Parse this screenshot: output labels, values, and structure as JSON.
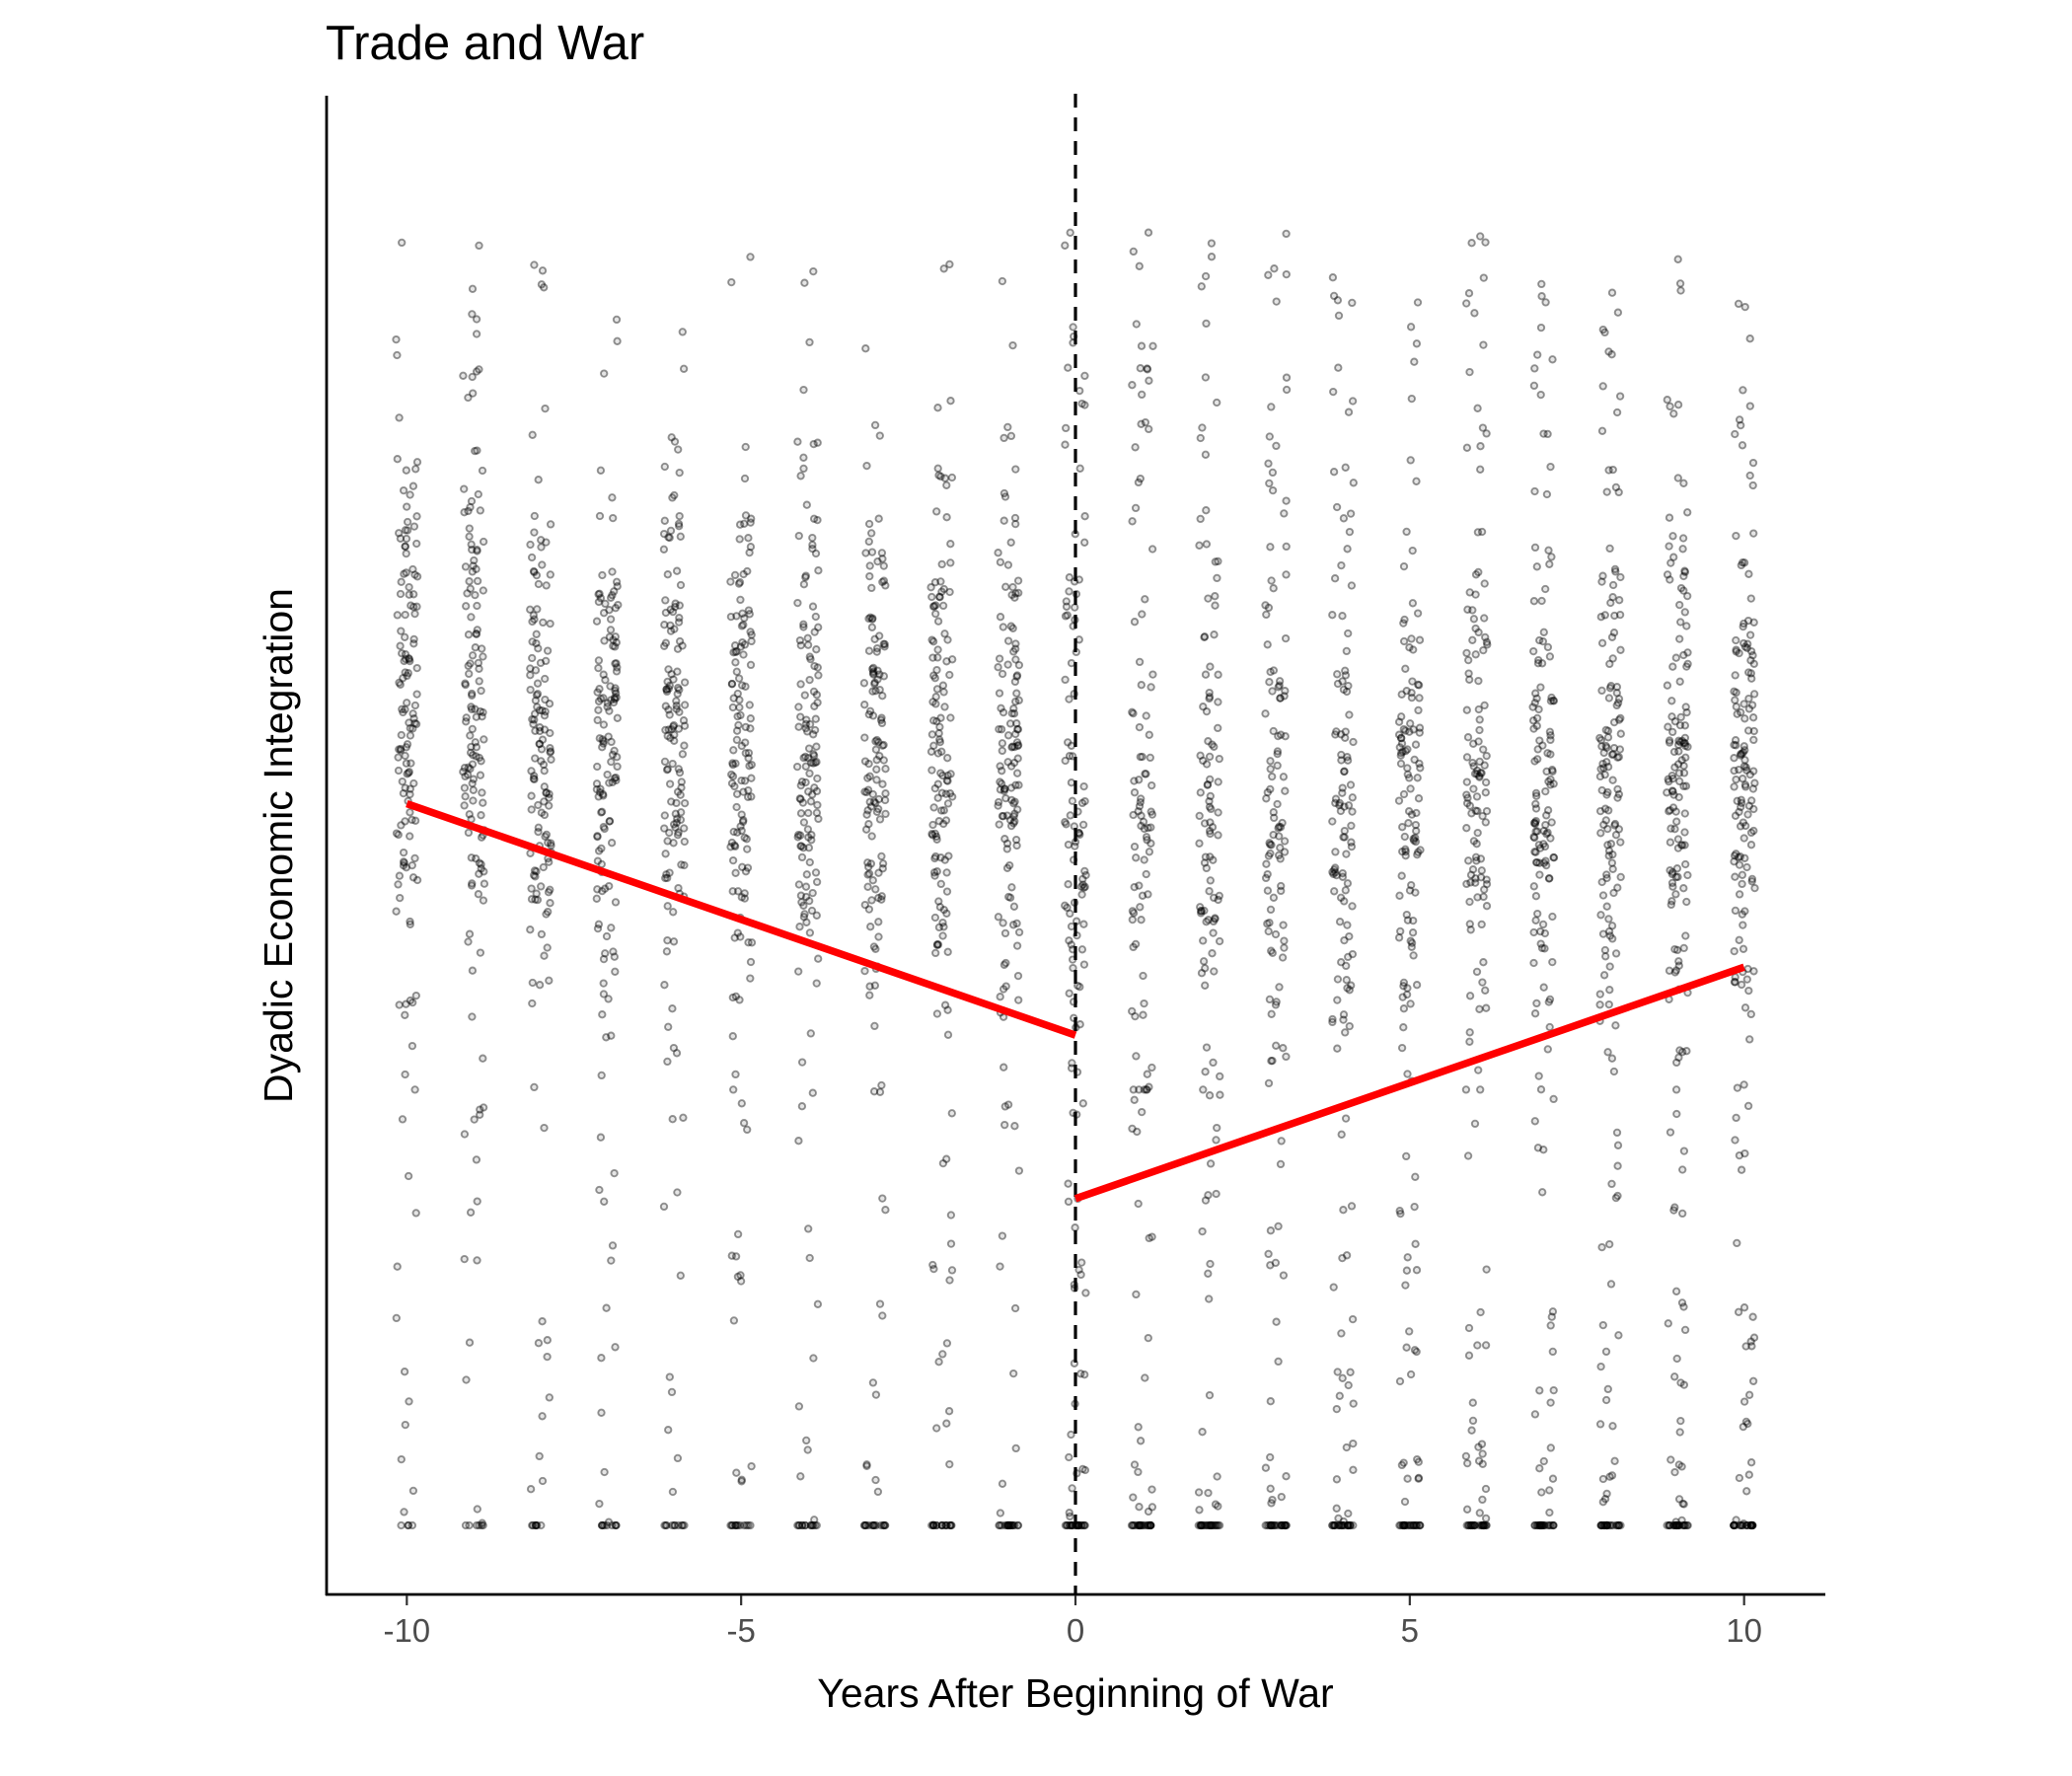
{
  "chart_data": {
    "type": "scatter",
    "title": "Trade and War",
    "xlabel": "Years After Beginning of War",
    "ylabel": "Dyadic Economic Integration",
    "xlim": [
      -11.2,
      11.2
    ],
    "ylim": [
      -0.05,
      1.05
    ],
    "x_ticks": [
      -10,
      -5,
      0,
      5,
      10
    ],
    "x_tick_labels": [
      "-10",
      "-5",
      "0",
      "5",
      "10"
    ],
    "y_ticks": [],
    "grid": false,
    "legend": "none",
    "vline": {
      "x": 0,
      "style": "dashed",
      "color": "#000000"
    },
    "points_color": "#000000",
    "points_note": "jittered observations per year, -10 to 10",
    "years": [
      -10,
      -9,
      -8,
      -7,
      -6,
      -5,
      -4,
      -3,
      -2,
      -1,
      0,
      1,
      2,
      3,
      4,
      5,
      6,
      7,
      8,
      9,
      10
    ],
    "regression_lines": [
      {
        "color": "#ff0000",
        "x": [
          -10,
          0
        ],
        "y": [
          0.53,
          0.36
        ]
      },
      {
        "color": "#ff0000",
        "x": [
          0,
          10
        ],
        "y": [
          0.24,
          0.41
        ]
      }
    ]
  }
}
